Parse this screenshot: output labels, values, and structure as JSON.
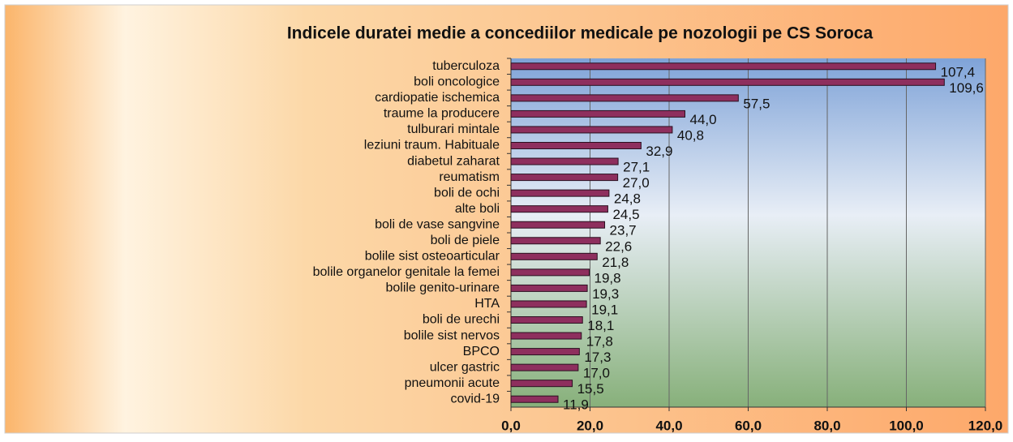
{
  "chart_data": {
    "type": "bar",
    "orientation": "horizontal",
    "title": "Indicele duratei medie a concediilor medicale pe nozologii pe CS Soroca",
    "categories": [
      "tuberculoza",
      "boli oncologice",
      "cardiopatie ischemica",
      "traume la producere",
      "tulburari mintale",
      "leziuni traum. Habituale",
      "diabetul zaharat",
      "reumatism",
      "boli de ochi",
      "alte boli",
      "boli de vase sangvine",
      "boli de piele",
      "bolile sist osteoarticular",
      "bolile organelor genitale la femei",
      "bolile genito-urinare",
      "HTA",
      "boli de urechi",
      "bolile sist nervos",
      "BPCO",
      "ulcer gastric",
      "pneumonii acute",
      "covid-19"
    ],
    "values": [
      107.4,
      109.6,
      57.5,
      44.0,
      40.8,
      32.9,
      27.1,
      27.0,
      24.8,
      24.5,
      23.7,
      22.6,
      21.8,
      19.8,
      19.3,
      19.1,
      18.1,
      17.8,
      17.3,
      17.0,
      15.5,
      11.9
    ],
    "value_labels": [
      "107,4",
      "109,6",
      "57,5",
      "44,0",
      "40,8",
      "32,9",
      "27,1",
      "27,0",
      "24,8",
      "24,5",
      "23,7",
      "22,6",
      "21,8",
      "19,8",
      "19,3",
      "19,1",
      "18,1",
      "17,8",
      "17,3",
      "17,0",
      "15,5",
      "11,9"
    ],
    "color": "#8e2f5e",
    "xlim": [
      0,
      120
    ],
    "xticks": [
      {
        "value": 0,
        "label": "0,0"
      },
      {
        "value": 20,
        "label": "20,0"
      },
      {
        "value": 40,
        "label": "40,0"
      },
      {
        "value": 60,
        "label": "60,0"
      },
      {
        "value": 80,
        "label": "80,0"
      },
      {
        "value": 100,
        "label": "100,0"
      },
      {
        "value": 120,
        "label": "120,0"
      }
    ],
    "grid": true
  }
}
